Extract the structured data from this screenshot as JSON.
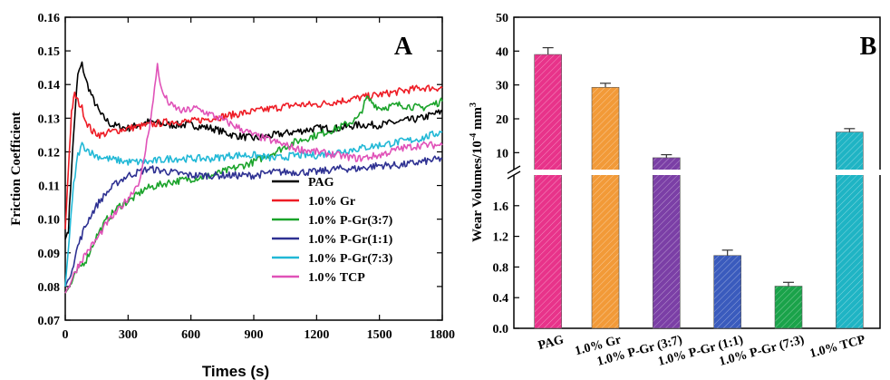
{
  "chart_data": [
    {
      "panel": "A",
      "type": "line",
      "xlabel": "Times (s)",
      "ylabel": "Friction Coefficient",
      "xlim": [
        0,
        1800
      ],
      "ylim": [
        0.07,
        0.16
      ],
      "xticks": [
        "0",
        "300",
        "600",
        "900",
        "1200",
        "1500",
        "1800"
      ],
      "yticks": [
        "0.07",
        "0.08",
        "0.09",
        "0.10",
        "0.11",
        "0.12",
        "0.13",
        "0.14",
        "0.15",
        "0.16"
      ],
      "legend_position": "bottom-right",
      "series": [
        {
          "name": "PAG",
          "color": "#000000",
          "x": [
            0,
            15,
            30,
            45,
            60,
            80,
            100,
            130,
            170,
            220,
            300,
            400,
            500,
            600,
            700,
            800,
            900,
            1000,
            1100,
            1200,
            1300,
            1400,
            1500,
            1600,
            1700,
            1800
          ],
          "y": [
            0.094,
            0.097,
            0.115,
            0.13,
            0.143,
            0.146,
            0.141,
            0.136,
            0.131,
            0.128,
            0.127,
            0.129,
            0.128,
            0.128,
            0.127,
            0.125,
            0.124,
            0.125,
            0.126,
            0.127,
            0.127,
            0.128,
            0.128,
            0.129,
            0.13,
            0.132
          ]
        },
        {
          "name": "1.0% Gr",
          "color": "#ee1c25",
          "x": [
            0,
            15,
            30,
            45,
            60,
            80,
            100,
            130,
            170,
            220,
            300,
            400,
            500,
            600,
            700,
            800,
            900,
            1000,
            1100,
            1200,
            1300,
            1400,
            1500,
            1600,
            1700,
            1800
          ],
          "y": [
            0.097,
            0.115,
            0.132,
            0.137,
            0.135,
            0.133,
            0.129,
            0.126,
            0.125,
            0.126,
            0.127,
            0.128,
            0.129,
            0.129,
            0.13,
            0.131,
            0.132,
            0.133,
            0.134,
            0.134,
            0.135,
            0.136,
            0.137,
            0.138,
            0.139,
            0.139
          ]
        },
        {
          "name": "1.0% P-Gr(3:7)",
          "color": "#1aa32a",
          "x": [
            0,
            30,
            60,
            100,
            150,
            200,
            260,
            320,
            380,
            440,
            500,
            600,
            700,
            800,
            900,
            1000,
            1100,
            1200,
            1300,
            1400,
            1440,
            1500,
            1600,
            1700,
            1800
          ],
          "y": [
            0.078,
            0.081,
            0.085,
            0.088,
            0.095,
            0.1,
            0.104,
            0.106,
            0.109,
            0.11,
            0.111,
            0.112,
            0.113,
            0.115,
            0.117,
            0.12,
            0.123,
            0.125,
            0.127,
            0.13,
            0.136,
            0.133,
            0.134,
            0.133,
            0.135
          ]
        },
        {
          "name": "1.0% P-Gr(1:1)",
          "color": "#2e3192",
          "x": [
            0,
            20,
            40,
            60,
            90,
            120,
            160,
            200,
            250,
            300,
            350,
            400,
            500,
            600,
            700,
            800,
            900,
            1000,
            1100,
            1200,
            1300,
            1400,
            1500,
            1600,
            1700,
            1800
          ],
          "y": [
            0.08,
            0.083,
            0.087,
            0.092,
            0.097,
            0.101,
            0.105,
            0.108,
            0.111,
            0.113,
            0.114,
            0.115,
            0.114,
            0.113,
            0.113,
            0.113,
            0.113,
            0.114,
            0.114,
            0.114,
            0.115,
            0.115,
            0.116,
            0.116,
            0.117,
            0.118
          ]
        },
        {
          "name": "1.0% P-Gr(7:3)",
          "color": "#21b8d6",
          "x": [
            0,
            20,
            40,
            60,
            80,
            100,
            140,
            200,
            300,
            400,
            500,
            600,
            700,
            800,
            900,
            1000,
            1100,
            1200,
            1300,
            1400,
            1500,
            1600,
            1700,
            1800
          ],
          "y": [
            0.08,
            0.095,
            0.11,
            0.119,
            0.122,
            0.121,
            0.119,
            0.118,
            0.117,
            0.117,
            0.118,
            0.118,
            0.118,
            0.119,
            0.119,
            0.118,
            0.119,
            0.119,
            0.12,
            0.121,
            0.122,
            0.123,
            0.124,
            0.126
          ]
        },
        {
          "name": "1.0% TCP",
          "color": "#e052b8",
          "x": [
            0,
            30,
            60,
            100,
            150,
            200,
            260,
            320,
            360,
            390,
            420,
            440,
            460,
            500,
            560,
            620,
            700,
            800,
            900,
            1000,
            1100,
            1200,
            1300,
            1400,
            1500,
            1600,
            1700,
            1800
          ],
          "y": [
            0.078,
            0.082,
            0.086,
            0.09,
            0.094,
            0.099,
            0.103,
            0.108,
            0.112,
            0.123,
            0.135,
            0.146,
            0.138,
            0.134,
            0.132,
            0.133,
            0.131,
            0.128,
            0.125,
            0.123,
            0.121,
            0.12,
            0.119,
            0.118,
            0.119,
            0.121,
            0.122,
            0.122
          ]
        }
      ],
      "legend": [
        "PAG",
        "1.0% Gr",
        "1.0% P-Gr(3:7)",
        "1.0% P-Gr(1:1)",
        "1.0% P-Gr(7:3)",
        "1.0% TCP"
      ]
    },
    {
      "panel": "B",
      "type": "bar",
      "ylabel": "Wear Volumes/10",
      "ylabel_sup1": "-4",
      "ylabel_unit": " mm",
      "ylabel_sup2": "3",
      "axis_break": true,
      "upper_ylim": [
        5,
        50
      ],
      "upper_yticks": [
        "10",
        "20",
        "30",
        "40",
        "50"
      ],
      "lower_ylim": [
        0,
        2.0
      ],
      "lower_yticks": [
        "0.0",
        "0.4",
        "0.8",
        "1.2",
        "1.6"
      ],
      "categories": [
        "PAG",
        "1.0% Gr",
        "1.0% P-Gr (3:7)",
        "1.0% P-Gr (1:1)",
        "1.0% P-Gr (7:3)",
        "1.0% TCP"
      ],
      "values": [
        39.0,
        29.3,
        8.5,
        0.95,
        0.55,
        16.1
      ],
      "errors": [
        2.0,
        1.2,
        0.9,
        0.07,
        0.05,
        1.0
      ],
      "colors": [
        "#e8338a",
        "#f29a38",
        "#7b3fa6",
        "#3a5bbd",
        "#1aa34a",
        "#1fb4c4"
      ]
    }
  ]
}
